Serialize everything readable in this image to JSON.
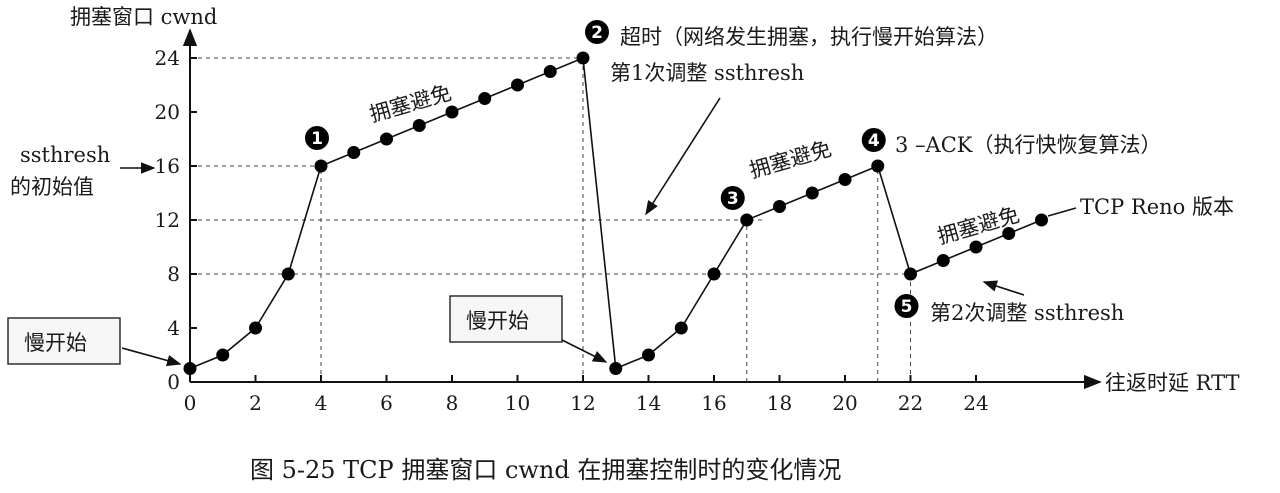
{
  "chart_data": {
    "type": "line",
    "title": "图 5-25    TCP 拥塞窗口 cwnd 在拥塞控制时的变化情况",
    "xlabel": "往返时延 RTT",
    "ylabel": "拥塞窗口 cwnd",
    "xlim": [
      0,
      26
    ],
    "ylim": [
      0,
      24
    ],
    "xticks": [
      0,
      2,
      4,
      6,
      8,
      10,
      12,
      14,
      16,
      18,
      20,
      22,
      24
    ],
    "yticks": [
      0,
      4,
      8,
      12,
      16,
      20,
      24
    ],
    "series": [
      {
        "name": "",
        "points": [
          [
            0,
            1
          ],
          [
            1,
            2
          ],
          [
            2,
            4
          ],
          [
            3,
            8
          ],
          [
            4,
            16
          ],
          [
            5,
            17
          ],
          [
            6,
            18
          ],
          [
            7,
            19
          ],
          [
            8,
            20
          ],
          [
            9,
            21
          ],
          [
            10,
            22
          ],
          [
            11,
            23
          ],
          [
            12,
            24
          ],
          [
            13,
            1
          ],
          [
            14,
            2
          ],
          [
            15,
            4
          ],
          [
            16,
            8
          ],
          [
            17,
            12
          ],
          [
            18,
            13
          ],
          [
            19,
            14
          ],
          [
            20,
            15
          ],
          [
            21,
            16
          ],
          [
            22,
            8
          ],
          [
            23,
            9
          ],
          [
            24,
            10
          ],
          [
            25,
            11
          ],
          [
            26,
            12
          ]
        ]
      }
    ],
    "guides": [
      {
        "y": 24,
        "x_from": 0,
        "x_to": 12
      },
      {
        "y": 16,
        "x_from": 0,
        "x_to": 4
      },
      {
        "y": 12,
        "x_from": 0,
        "x_to": 17.5
      },
      {
        "y": 8,
        "x_from": 0,
        "x_to": 22
      },
      {
        "x": 4,
        "y_from": 0,
        "y_to": 16
      },
      {
        "x": 12,
        "y_from": 0,
        "y_to": 24
      },
      {
        "x": 17,
        "y_from": 0,
        "y_to": 12
      },
      {
        "x": 21,
        "y_from": 0,
        "y_to": 16
      },
      {
        "x": 22,
        "y_from": 0,
        "y_to": 8
      }
    ],
    "badges": [
      {
        "num": "1",
        "x": 4,
        "y": 16
      },
      {
        "num": "2",
        "x": 12,
        "y": 24
      },
      {
        "num": "3",
        "x": 17,
        "y": 12
      },
      {
        "num": "4",
        "x": 21,
        "y": 16
      },
      {
        "num": "5",
        "x": 22,
        "y": 8
      }
    ],
    "annotations": {
      "ssthresh_line1": "ssthresh",
      "ssthresh_line2": "的初始值",
      "slow_start_1": "慢开始",
      "slow_start_2": "慢开始",
      "ca_1": "拥塞避免",
      "ca_2": "拥塞避免",
      "ca_3": "拥塞避免",
      "timeout": "超时（网络发生拥塞，执行慢开始算法）",
      "adjust_1": "第1次调整 ssthresh",
      "ack3": "3 –ACK（执行快恢复算法）",
      "reno": "TCP Reno 版本",
      "adjust_2": "第2次调整 ssthresh"
    }
  }
}
